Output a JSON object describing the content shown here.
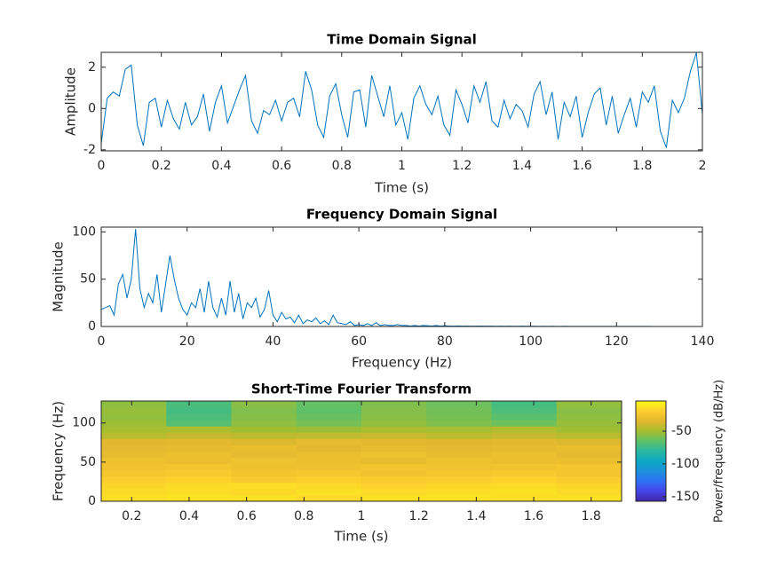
{
  "chart_data": [
    {
      "type": "line",
      "title": "Time Domain Signal",
      "xlabel": "Time (s)",
      "ylabel": "Amplitude",
      "color": "#0072bd",
      "xlim": [
        0,
        2
      ],
      "xticks": [
        0,
        0.2,
        0.4,
        0.6,
        0.8,
        1,
        1.2,
        1.4,
        1.6,
        1.8,
        2
      ],
      "ylim": [
        -2.05,
        2.72
      ],
      "yticks": [
        -2,
        0,
        2
      ],
      "x": [
        0,
        0.02,
        0.04,
        0.06,
        0.08,
        0.1,
        0.12,
        0.14,
        0.16,
        0.18,
        0.2,
        0.22,
        0.24,
        0.26,
        0.28,
        0.3,
        0.32,
        0.34,
        0.36,
        0.38,
        0.4,
        0.42,
        0.44,
        0.46,
        0.48,
        0.5,
        0.52,
        0.54,
        0.56,
        0.58,
        0.6,
        0.62,
        0.64,
        0.66,
        0.68,
        0.7,
        0.72,
        0.74,
        0.76,
        0.78,
        0.8,
        0.82,
        0.84,
        0.86,
        0.88,
        0.9,
        0.92,
        0.94,
        0.96,
        0.98,
        1,
        1.02,
        1.04,
        1.06,
        1.08,
        1.1,
        1.12,
        1.14,
        1.16,
        1.18,
        1.2,
        1.22,
        1.24,
        1.26,
        1.28,
        1.3,
        1.32,
        1.34,
        1.36,
        1.38,
        1.4,
        1.42,
        1.44,
        1.46,
        1.48,
        1.5,
        1.52,
        1.54,
        1.56,
        1.58,
        1.6,
        1.62,
        1.64,
        1.66,
        1.68,
        1.7,
        1.72,
        1.74,
        1.76,
        1.78,
        1.8,
        1.82,
        1.84,
        1.86,
        1.88,
        1.9,
        1.92,
        1.94,
        1.96,
        1.98,
        2
      ],
      "values": [
        -1.7,
        0.5,
        0.8,
        0.6,
        1.9,
        2.1,
        -0.8,
        -1.8,
        0.3,
        0.5,
        -0.9,
        0.4,
        -0.5,
        -1.0,
        0.3,
        -0.8,
        -0.4,
        0.7,
        -1.1,
        0.3,
        1.1,
        -0.7,
        0.1,
        0.9,
        1.6,
        -0.6,
        -1.2,
        -0.1,
        -0.3,
        0.4,
        -0.6,
        0.3,
        0.5,
        -0.4,
        1.8,
        0.9,
        -0.8,
        -1.4,
        0.6,
        1.2,
        -0.3,
        -1.4,
        0.8,
        0.9,
        -0.9,
        1.6,
        0.6,
        -0.4,
        1.1,
        -0.8,
        -0.2,
        -1.5,
        0.5,
        1.1,
        0.2,
        -0.3,
        0.6,
        -0.8,
        -1.3,
        0.9,
        0.2,
        -0.7,
        1.1,
        0.3,
        1.3,
        -0.6,
        -0.9,
        0.4,
        -0.5,
        0.2,
        -0.1,
        -0.9,
        0.7,
        1.3,
        -0.3,
        0.8,
        -1.5,
        0.3,
        -0.4,
        0.6,
        -1.4,
        -0.2,
        0.7,
        1.0,
        -0.8,
        0.6,
        -1.2,
        -0.3,
        0.5,
        -0.9,
        0.8,
        0.3,
        1.1,
        -1.1,
        -1.9,
        0.4,
        -0.2,
        0.5,
        1.8,
        2.7,
        -0.3
      ]
    },
    {
      "type": "line",
      "title": "Frequency Domain Signal",
      "xlabel": "Frequency (Hz)",
      "ylabel": "Magnitude",
      "color": "#0072bd",
      "xlim": [
        0,
        140
      ],
      "xticks": [
        0,
        20,
        40,
        60,
        80,
        100,
        120,
        140
      ],
      "ylim": [
        0,
        105
      ],
      "yticks": [
        0,
        50,
        100
      ],
      "x": [
        0,
        1,
        2,
        3,
        4,
        5,
        6,
        7,
        8,
        9,
        10,
        11,
        12,
        13,
        14,
        15,
        16,
        17,
        18,
        19,
        20,
        21,
        22,
        23,
        24,
        25,
        26,
        27,
        28,
        29,
        30,
        31,
        32,
        33,
        34,
        35,
        36,
        37,
        38,
        39,
        40,
        41,
        42,
        43,
        44,
        45,
        46,
        47,
        48,
        49,
        50,
        51,
        52,
        53,
        54,
        55,
        56,
        57,
        58,
        59,
        60,
        61,
        62,
        63,
        64,
        65,
        66,
        67,
        68,
        69,
        70,
        71,
        72,
        73,
        74,
        75,
        76,
        77,
        78,
        79,
        80,
        81,
        82,
        83,
        84,
        85,
        86,
        87,
        88,
        89,
        90,
        91,
        92,
        93,
        94,
        95,
        96,
        97,
        98,
        99,
        100,
        101,
        102,
        103,
        104,
        105,
        106,
        107,
        108,
        109,
        110,
        111,
        112,
        113,
        114,
        115,
        116,
        117,
        118,
        119,
        120,
        121,
        122,
        123,
        124,
        125,
        126,
        127,
        128
      ],
      "values": [
        18,
        20,
        22,
        12,
        45,
        55,
        30,
        50,
        103,
        40,
        20,
        35,
        25,
        55,
        15,
        45,
        75,
        50,
        30,
        18,
        12,
        25,
        20,
        40,
        15,
        48,
        20,
        10,
        30,
        12,
        48,
        15,
        35,
        8,
        25,
        20,
        30,
        10,
        18,
        38,
        12,
        5,
        15,
        8,
        10,
        4,
        12,
        3,
        7,
        5,
        9,
        3,
        6,
        2,
        12,
        4,
        3,
        2,
        5,
        1,
        2,
        1,
        3,
        1,
        4,
        1,
        2,
        1,
        1,
        2,
        1,
        1,
        0.5,
        1,
        0.5,
        1,
        0.8,
        0.5,
        1,
        0.5,
        0.8,
        0.5,
        0.4,
        0.6,
        0.3,
        0.5,
        0.4,
        0.3,
        0.5,
        0.3,
        0.4,
        0.3,
        0.2,
        0.3,
        0.2,
        0.3,
        0.2,
        0.2,
        0.3,
        0.2,
        0.2,
        0.2,
        0.1,
        0.2,
        0.1,
        0.2,
        0.1,
        0.1,
        0.2,
        0.1,
        0.1,
        0.1,
        0.1,
        0.1,
        0.1,
        0.1,
        0.1,
        0.1,
        0.1,
        0.1,
        0.1,
        0.1,
        0.1,
        0.1,
        0.1,
        0.1,
        0.1,
        0.1,
        0.1
      ]
    },
    {
      "type": "heatmap",
      "title": "Short-Time Fourier Transform",
      "xlabel": "Time (s)",
      "ylabel": "Frequency (Hz)",
      "xlim": [
        0.094,
        1.906
      ],
      "xticks": [
        0.2,
        0.4,
        0.6,
        0.8,
        1,
        1.2,
        1.4,
        1.6,
        1.8
      ],
      "ylim": [
        0,
        128
      ],
      "yticks": [
        0,
        50,
        100
      ],
      "x": [
        0.207,
        0.434,
        0.66,
        0.887,
        1.113,
        1.34,
        1.566,
        1.793
      ],
      "y": [
        4,
        12,
        20,
        28,
        36,
        44,
        52,
        60,
        68,
        76,
        84,
        92,
        100,
        108,
        116,
        124
      ],
      "z": [
        [
          -14,
          -12,
          -13,
          -15,
          -13,
          -12,
          -14,
          -13
        ],
        [
          -15,
          -14,
          -16,
          -13,
          -15,
          -14,
          -13,
          -15
        ],
        [
          -17,
          -15,
          -14,
          -16,
          -18,
          -16,
          -15,
          -17
        ],
        [
          -20,
          -18,
          -22,
          -19,
          -21,
          -20,
          -18,
          -21
        ],
        [
          -24,
          -22,
          -25,
          -23,
          -26,
          -24,
          -22,
          -25
        ],
        [
          -26,
          -25,
          -28,
          -27,
          -25,
          -27,
          -26,
          -24
        ],
        [
          -28,
          -30,
          -27,
          -29,
          -31,
          -28,
          -30,
          -29
        ],
        [
          -31,
          -29,
          -32,
          -30,
          -28,
          -31,
          -29,
          -32
        ],
        [
          -33,
          -32,
          -30,
          -34,
          -31,
          -33,
          -32,
          -30
        ],
        [
          -35,
          -33,
          -36,
          -32,
          -34,
          -35,
          -33,
          -36
        ],
        [
          -45,
          -42,
          -44,
          -43,
          -41,
          -44,
          -42,
          -45
        ],
        [
          -50,
          -48,
          -51,
          -52,
          -49,
          -50,
          -47,
          -51
        ],
        [
          -52,
          -68,
          -55,
          -60,
          -54,
          -58,
          -62,
          -53
        ],
        [
          -54,
          -70,
          -57,
          -63,
          -56,
          -60,
          -66,
          -55
        ],
        [
          -53,
          -72,
          -58,
          -65,
          -57,
          -61,
          -70,
          -56
        ],
        [
          -55,
          -71,
          -56,
          -64,
          -58,
          -62,
          -72,
          -54
        ]
      ],
      "clim": [
        -157,
        -4
      ],
      "colorbar_ticks": [
        -150,
        -100,
        -50
      ],
      "colorbar_label": "Power/frequency (dB/Hz)",
      "colormap": [
        "#3e26a8",
        "#4744e8",
        "#2e70f7",
        "#1e91d9",
        "#0ba8c3",
        "#2ab8a0",
        "#5ec068",
        "#a6be2f",
        "#e2b72f",
        "#fdce2f",
        "#f9fb15"
      ]
    }
  ]
}
